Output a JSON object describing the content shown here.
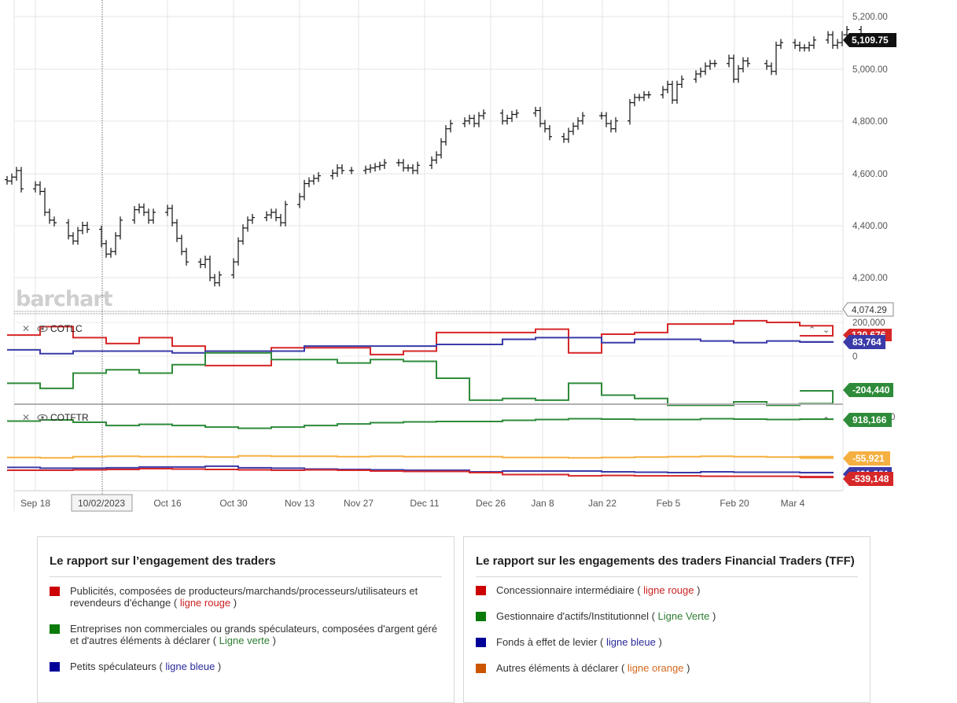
{
  "watermark": "barchart",
  "price_pane": {
    "y_ticks": [
      "5,200.00",
      "5,000.00",
      "4,800.00",
      "4,600.00",
      "4,400.00",
      "4,200.00"
    ],
    "last_price_tag": "5,109.75",
    "crosshair_value": "4,074.29"
  },
  "cotlc_pane": {
    "title": "COTLC",
    "y_ticks": [
      "200,000",
      "0"
    ],
    "tags": {
      "red": "120,676",
      "blue": "83,764",
      "green": "-204,440"
    }
  },
  "cotftr_pane": {
    "title": "COTFTR",
    "y_tick_partial": "0",
    "tags": {
      "green": "918,166",
      "orange": "-55,921",
      "blue": "-421,381",
      "red": "-539,148"
    }
  },
  "x_axis": {
    "labels": [
      "Sep 18",
      "Oct 16",
      "Oct 30",
      "Nov 13",
      "Nov 27",
      "Dec 11",
      "Dec 26",
      "Jan 8",
      "Jan 22",
      "Feb 5",
      "Feb 20",
      "Mar 4"
    ],
    "crosshair_date": "10/02/2023"
  },
  "colors": {
    "red": "#d62728",
    "green": "#2e8b3a",
    "blue": "#3a3aa8",
    "orange": "#f5b041",
    "orange_text": "#d2691e"
  },
  "chart_data": [
    {
      "type": "ohlc",
      "title": "",
      "x": [
        "2023-09-12",
        "2023-09-13",
        "2023-09-14",
        "2023-09-15",
        "2023-09-18",
        "2023-09-19",
        "2023-09-20",
        "2023-09-21",
        "2023-09-22",
        "2023-09-25",
        "2023-09-26",
        "2023-09-27",
        "2023-09-28",
        "2023-09-29",
        "2023-10-02",
        "2023-10-03",
        "2023-10-04",
        "2023-10-05",
        "2023-10-06",
        "2023-10-09",
        "2023-10-10",
        "2023-10-11",
        "2023-10-12",
        "2023-10-13",
        "2023-10-16",
        "2023-10-17",
        "2023-10-18",
        "2023-10-19",
        "2023-10-20",
        "2023-10-23",
        "2023-10-24",
        "2023-10-25",
        "2023-10-26",
        "2023-10-27",
        "2023-10-30",
        "2023-10-31",
        "2023-11-01",
        "2023-11-02",
        "2023-11-03",
        "2023-11-06",
        "2023-11-07",
        "2023-11-08",
        "2023-11-09",
        "2023-11-10",
        "2023-11-13",
        "2023-11-14",
        "2023-11-15",
        "2023-11-16",
        "2023-11-17",
        "2023-11-20",
        "2023-11-21",
        "2023-11-22",
        "2023-11-24",
        "2023-11-27",
        "2023-11-28",
        "2023-11-29",
        "2023-11-30",
        "2023-12-01",
        "2023-12-04",
        "2023-12-05",
        "2023-12-06",
        "2023-12-07",
        "2023-12-08",
        "2023-12-11",
        "2023-12-12",
        "2023-12-13",
        "2023-12-14",
        "2023-12-15",
        "2023-12-18",
        "2023-12-19",
        "2023-12-20",
        "2023-12-21",
        "2023-12-22",
        "2023-12-26",
        "2023-12-27",
        "2023-12-28",
        "2023-12-29",
        "2024-01-02",
        "2024-01-03",
        "2024-01-04",
        "2024-01-05",
        "2024-01-08",
        "2024-01-09",
        "2024-01-10",
        "2024-01-11",
        "2024-01-12",
        "2024-01-16",
        "2024-01-17",
        "2024-01-18",
        "2024-01-19",
        "2024-01-22",
        "2024-01-23",
        "2024-01-24",
        "2024-01-25",
        "2024-01-26",
        "2024-01-29",
        "2024-01-30",
        "2024-01-31",
        "2024-02-01",
        "2024-02-02",
        "2024-02-05",
        "2024-02-06",
        "2024-02-07",
        "2024-02-08",
        "2024-02-09",
        "2024-02-12",
        "2024-02-13",
        "2024-02-14",
        "2024-02-15",
        "2024-02-16",
        "2024-02-20",
        "2024-02-21",
        "2024-02-22",
        "2024-02-23",
        "2024-02-26",
        "2024-02-27",
        "2024-02-28",
        "2024-02-29",
        "2024-03-01",
        "2024-03-04",
        "2024-03-05",
        "2024-03-06",
        "2024-03-07",
        "2024-03-08",
        "2024-03-11"
      ],
      "close": [
        4570,
        4585,
        4610,
        4540,
        4555,
        4530,
        4450,
        4420,
        4410,
        4360,
        4340,
        4380,
        4400,
        4385,
        4330,
        4290,
        4300,
        4360,
        4420,
        4460,
        4470,
        4450,
        4420,
        4450,
        4465,
        4410,
        4350,
        4300,
        4260,
        4250,
        4270,
        4200,
        4180,
        4210,
        4260,
        4340,
        4390,
        4420,
        4430,
        4440,
        4450,
        4430,
        4410,
        4480,
        4510,
        4560,
        4570,
        4580,
        4590,
        4600,
        4620,
        4610,
        4610,
        4615,
        4620,
        4625,
        4630,
        4640,
        4640,
        4620,
        4620,
        4610,
        4630,
        4650,
        4670,
        4720,
        4770,
        4790,
        4800,
        4810,
        4790,
        4820,
        4830,
        4800,
        4810,
        4825,
        4830,
        4840,
        4790,
        4770,
        4740,
        4730,
        4760,
        4780,
        4800,
        4820,
        4820,
        4790,
        4770,
        4800,
        4870,
        4890,
        4890,
        4900,
        4900,
        4920,
        4940,
        4880,
        4940,
        4960,
        4980,
        4990,
        5010,
        5020,
        5020,
        5040,
        4960,
        5000,
        5030,
        5020,
        5010,
        4990,
        5090,
        5100,
        5090,
        5080,
        5080,
        5090,
        5110,
        5130,
        5090,
        5100,
        5130,
        5150,
        5109.75
      ],
      "y_range": [
        4140,
        5240
      ]
    },
    {
      "type": "line",
      "title": "COTLC",
      "x": [
        "2023-09-12",
        "2023-09-19",
        "2023-09-26",
        "2023-10-03",
        "2023-10-10",
        "2023-10-17",
        "2023-10-24",
        "2023-10-31",
        "2023-11-07",
        "2023-11-14",
        "2023-11-21",
        "2023-11-28",
        "2023-12-05",
        "2023-12-12",
        "2023-12-19",
        "2023-12-26",
        "2024-01-02",
        "2024-01-09",
        "2024-01-16",
        "2024-01-23",
        "2024-01-30",
        "2024-02-06",
        "2024-02-13",
        "2024-02-20",
        "2024-02-27",
        "2024-03-05"
      ],
      "series": [
        {
          "name": "ligne rouge",
          "values": [
            125000,
            175000,
            110000,
            75000,
            110000,
            60000,
            -55000,
            -55000,
            50000,
            50000,
            50000,
            10000,
            30000,
            140000,
            140000,
            140000,
            160000,
            20000,
            130000,
            140000,
            190000,
            190000,
            210000,
            200000,
            180000,
            120676
          ]
        },
        {
          "name": "ligne bleue",
          "values": [
            38000,
            15000,
            30000,
            30000,
            30000,
            20000,
            30000,
            30000,
            30000,
            60000,
            60000,
            60000,
            60000,
            70000,
            70000,
            100000,
            110000,
            110000,
            80000,
            100000,
            100000,
            90000,
            80000,
            90000,
            85000,
            83764
          ]
        },
        {
          "name": "ligne verte",
          "values": [
            -160000,
            -190000,
            -100000,
            -80000,
            -100000,
            -50000,
            20000,
            20000,
            -20000,
            -20000,
            -40000,
            -20000,
            -30000,
            -130000,
            -260000,
            -250000,
            -260000,
            -160000,
            -230000,
            -250000,
            -290000,
            -290000,
            -270000,
            -290000,
            -280000,
            -204440
          ]
        }
      ],
      "y_ticks": [
        200000,
        0
      ]
    },
    {
      "type": "line",
      "title": "COTFTR",
      "x": [
        "2023-09-12",
        "2023-09-19",
        "2023-09-26",
        "2023-10-03",
        "2023-10-10",
        "2023-10-17",
        "2023-10-24",
        "2023-10-31",
        "2023-11-07",
        "2023-11-14",
        "2023-11-21",
        "2023-11-28",
        "2023-12-05",
        "2023-12-12",
        "2023-12-19",
        "2023-12-26",
        "2024-01-02",
        "2024-01-09",
        "2024-01-16",
        "2024-01-23",
        "2024-01-30",
        "2024-02-06",
        "2024-02-13",
        "2024-02-20",
        "2024-02-27",
        "2024-03-05"
      ],
      "series": [
        {
          "name": "ligne verte",
          "values": [
            870000,
            900000,
            840000,
            760000,
            790000,
            760000,
            720000,
            690000,
            720000,
            760000,
            800000,
            830000,
            850000,
            860000,
            860000,
            890000,
            910000,
            930000,
            920000,
            910000,
            910000,
            930000,
            920000,
            910000,
            920000,
            918166
          ]
        },
        {
          "name": "ligne orange",
          "values": [
            -40000,
            -50000,
            -20000,
            -10000,
            -20000,
            -20000,
            -30000,
            0,
            -10000,
            -10000,
            -20000,
            -10000,
            -20000,
            -20000,
            -20000,
            -40000,
            -40000,
            -50000,
            -40000,
            -30000,
            -20000,
            -10000,
            -20000,
            -30000,
            -20000,
            -55921
          ]
        },
        {
          "name": "ligne bleue",
          "values": [
            -290000,
            -310000,
            -310000,
            -300000,
            -280000,
            -280000,
            -260000,
            -300000,
            -310000,
            -330000,
            -340000,
            -350000,
            -360000,
            -360000,
            -400000,
            -380000,
            -380000,
            -380000,
            -400000,
            -410000,
            -420000,
            -400000,
            -410000,
            -410000,
            -420000,
            -421381
          ]
        },
        {
          "name": "ligne rouge",
          "values": [
            -360000,
            -360000,
            -350000,
            -340000,
            -320000,
            -330000,
            -340000,
            -350000,
            -360000,
            -350000,
            -360000,
            -380000,
            -390000,
            -390000,
            -420000,
            -470000,
            -470000,
            -500000,
            -490000,
            -500000,
            -500000,
            -510000,
            -510000,
            -510000,
            -520000,
            -539148
          ]
        }
      ],
      "y_range": [
        -620000,
        1020000
      ]
    }
  ],
  "legend_cotlc": {
    "title": "Le rapport sur l’engagement des traders",
    "items": [
      {
        "text": "Publicités, composées de producteurs/marchands/processeurs/utilisateurs et revendeurs d'échange (",
        "line": "ligne rouge",
        "end": ")"
      },
      {
        "text": "Entreprises non commerciales ou grands spéculateurs, composées d'argent géré et d'autres éléments à déclarer (",
        "line": "Ligne verte",
        "end": ")"
      },
      {
        "text": "Petits spéculateurs (",
        "line": "ligne bleue",
        "end": ")"
      }
    ]
  },
  "legend_tff": {
    "title": "Le rapport sur les engagements des traders Financial Traders (TFF)",
    "items": [
      {
        "text": "Concessionnaire intermédiaire (",
        "line": "ligne rouge",
        "end": ")"
      },
      {
        "text": "Gestionnaire d'actifs/Institutionnel (",
        "line": "Ligne Verte",
        "end": ")"
      },
      {
        "text": "Fonds à effet de levier (",
        "line": "ligne bleue",
        "end": ")"
      },
      {
        "text": "Autres éléments à déclarer (",
        "line": "ligne orange",
        "end": ")"
      }
    ]
  }
}
